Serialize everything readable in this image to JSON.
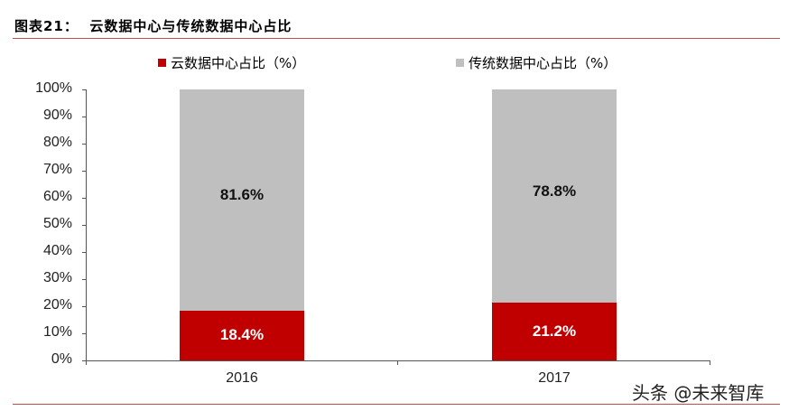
{
  "header": {
    "title": "图表21：  云数据中心与传统数据中心占比"
  },
  "chart_data": {
    "type": "bar",
    "stacked": true,
    "title": "云数据中心与传统数据中心占比",
    "categories": [
      "2016",
      "2017"
    ],
    "series": [
      {
        "name": "云数据中心占比（%）",
        "color": "#c00000",
        "values": [
          18.4,
          21.2
        ],
        "labels": [
          "18.4%",
          "21.2%"
        ]
      },
      {
        "name": "传统数据中心占比（%）",
        "color": "#bfbfbf",
        "values": [
          81.6,
          78.8
        ],
        "labels": [
          "81.6%",
          "78.8%"
        ]
      }
    ],
    "xlabel": "",
    "ylabel": "",
    "ylim": [
      0,
      100
    ],
    "yticks": [
      "100%",
      "90%",
      "80%",
      "70%",
      "60%",
      "50%",
      "40%",
      "30%",
      "20%",
      "10%",
      "0%"
    ],
    "grid": false,
    "legend_position": "top"
  },
  "legend": {
    "cloud": "云数据中心占比（%）",
    "traditional": "传统数据中心占比（%）"
  },
  "watermark": "头条 @未来智库"
}
